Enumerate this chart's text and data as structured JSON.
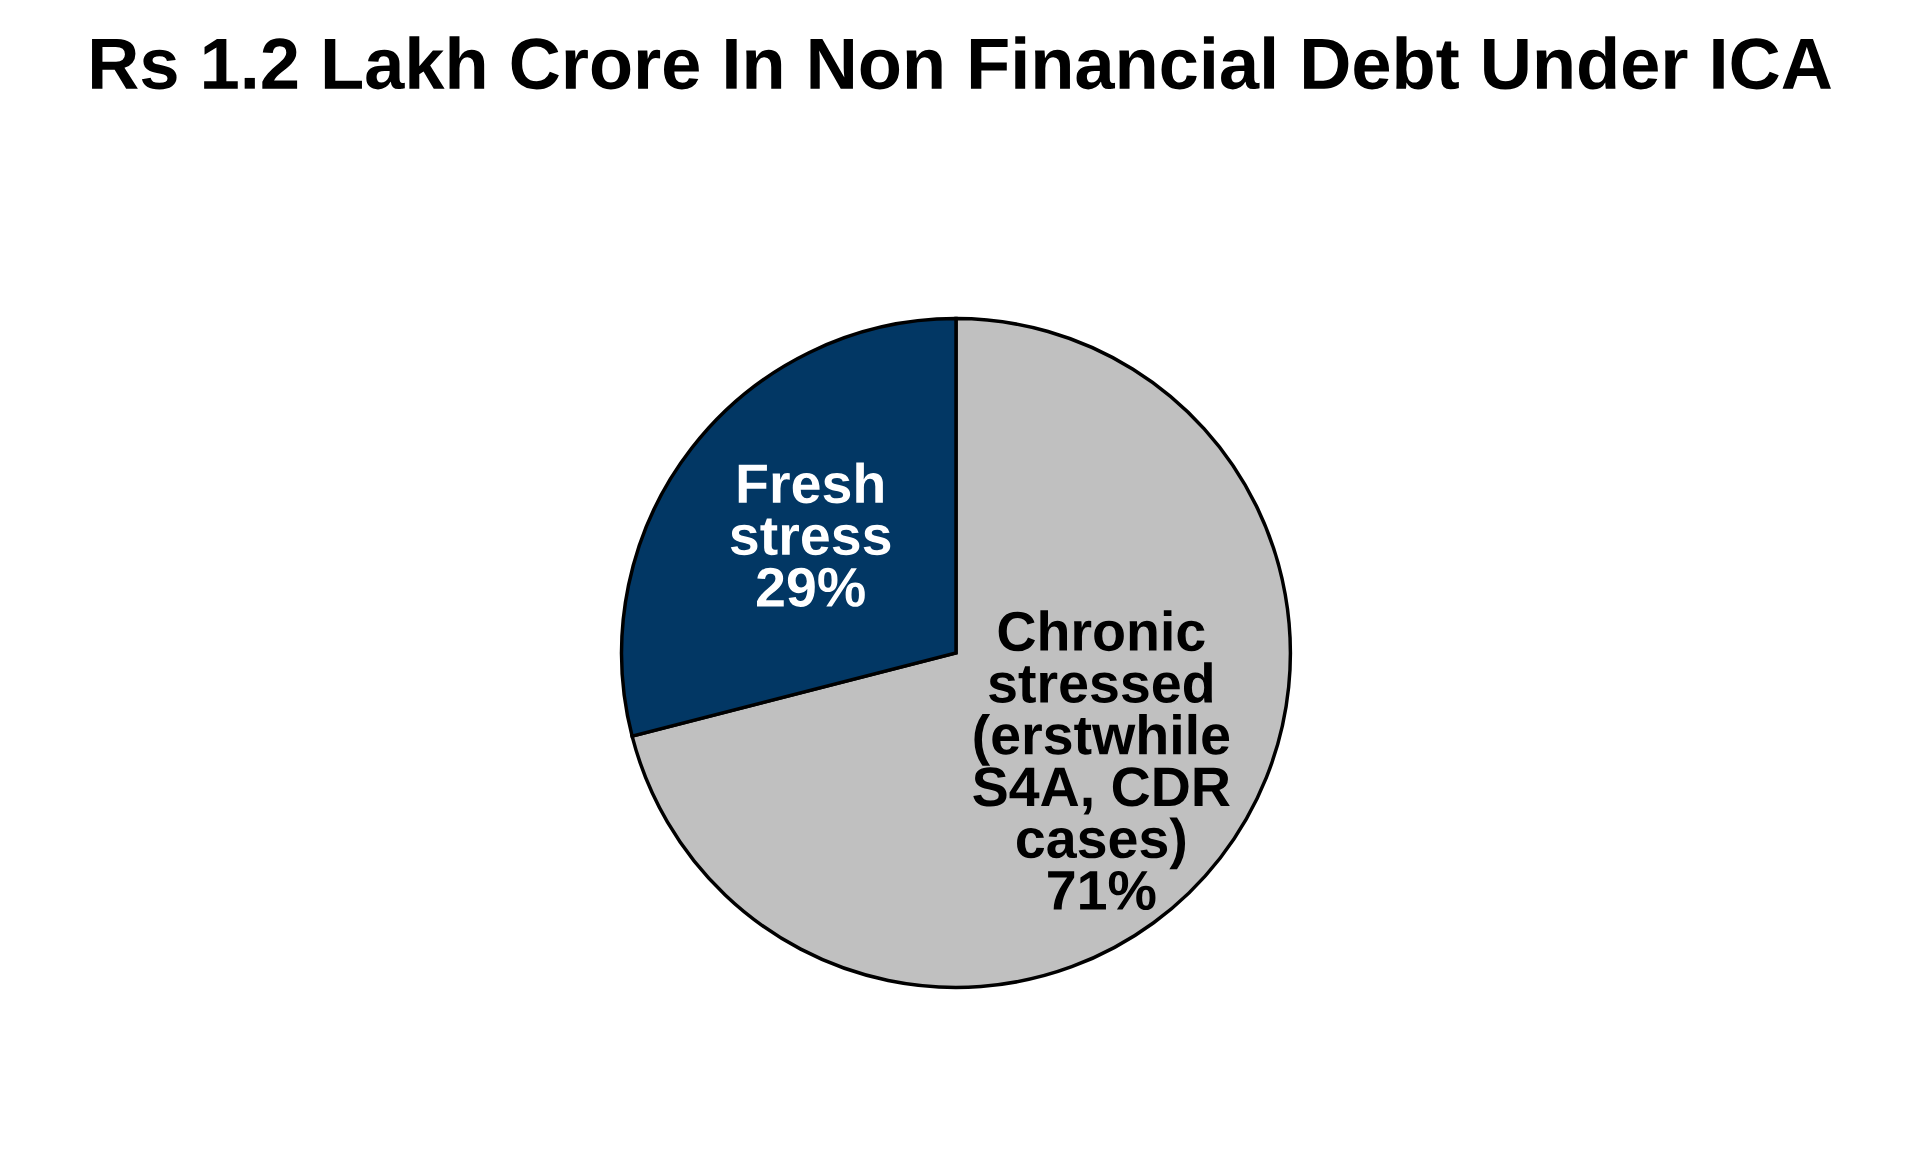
{
  "chart_data": {
    "type": "pie",
    "title": "Rs 1.2 Lakh Crore In Non Financial Debt Under ICA",
    "categories": [
      "Chronic\nstressed\n(erstwhile\nS4A, CDR\ncases)",
      "Fresh\nstress"
    ],
    "values": [
      71,
      29
    ],
    "colors": [
      "#c0c0c0",
      "#023764"
    ],
    "value_labels": [
      "71%",
      "29%"
    ]
  }
}
